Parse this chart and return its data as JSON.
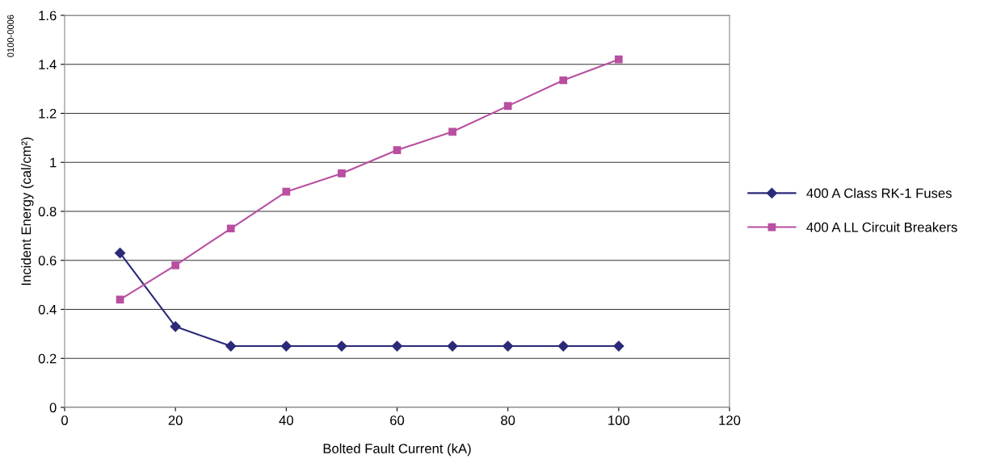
{
  "chart_data": {
    "type": "line",
    "xlabel": "Bolted Fault Current (kA)",
    "ylabel": "Incident Energy (cal/cm²)",
    "annotations": [
      "0100-0006"
    ],
    "x": [
      10,
      20,
      30,
      40,
      50,
      60,
      70,
      80,
      90,
      100
    ],
    "series": [
      {
        "name": "400 A Class RK-1 Fuses",
        "color": "#2b2a78",
        "marker": "diamond",
        "values": [
          0.63,
          0.33,
          0.25,
          0.25,
          0.25,
          0.25,
          0.25,
          0.25,
          0.25,
          0.25
        ]
      },
      {
        "name": "400 A LL Circuit Breakers",
        "color": "#b84fa0",
        "marker": "square",
        "values": [
          0.44,
          0.58,
          0.73,
          0.88,
          0.955,
          1.05,
          1.125,
          1.23,
          1.335,
          1.42
        ]
      }
    ],
    "xlim": [
      0,
      120
    ],
    "xticks": [
      0,
      20,
      40,
      60,
      80,
      100,
      120
    ],
    "ylim": [
      0,
      1.6
    ],
    "yticks": [
      0,
      0.2,
      0.4,
      0.6,
      0.8,
      1,
      1.2,
      1.4,
      1.6
    ],
    "grid": "y",
    "legend": "right",
    "line_style": "solid"
  }
}
